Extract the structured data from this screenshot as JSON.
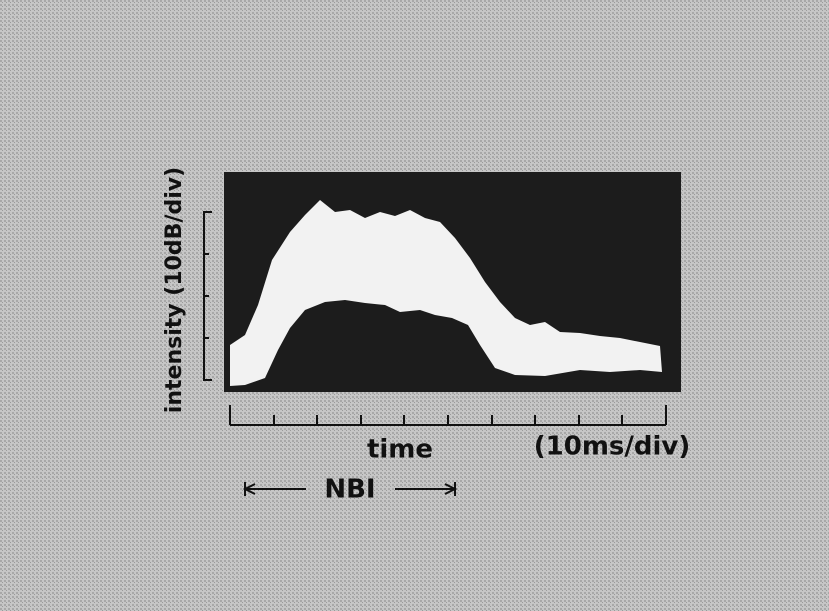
{
  "figure": {
    "y_label": "intensity (10dB/div)",
    "x_label": "time",
    "x_unit": "(10ms/div)",
    "marker": "NBI"
  }
}
